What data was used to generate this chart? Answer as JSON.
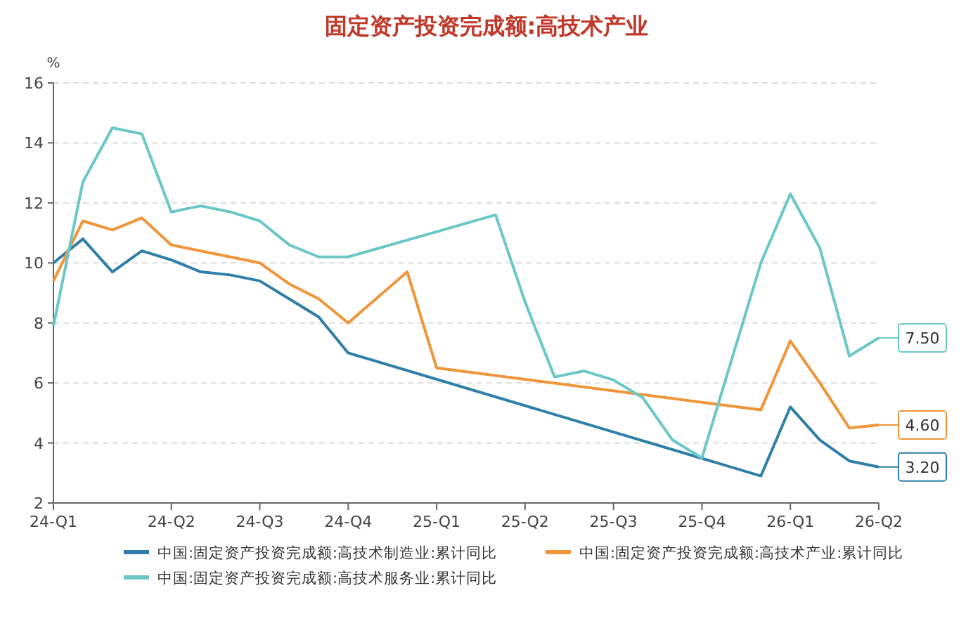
{
  "chart_data": {
    "type": "line",
    "title": "固定资产投资完成额:高技术产业",
    "ylabel": "%",
    "categories": [
      "24-Q1",
      null,
      null,
      null,
      "24-Q2",
      null,
      null,
      "24-Q3",
      null,
      null,
      "24-Q4",
      null,
      null,
      "25-Q1",
      null,
      null,
      "25-Q2",
      null,
      null,
      "25-Q3",
      null,
      null,
      "25-Q4",
      null,
      null,
      "26-Q1",
      null,
      null,
      "26-Q2"
    ],
    "series": [
      {
        "name": "中国:固定资产投资完成额:高技术制造业:累计同比",
        "color": "#2f7fa8",
        "values": [
          10.0,
          10.8,
          9.7,
          10.4,
          10.1,
          9.7,
          9.6,
          9.4,
          8.8,
          8.2,
          7.0,
          null,
          null,
          null,
          null,
          null,
          null,
          null,
          null,
          null,
          null,
          null,
          null,
          null,
          2.9,
          5.2,
          4.1,
          3.4,
          3.2
        ],
        "value_labels": [
          null,
          null,
          null,
          null,
          null,
          null,
          null,
          null,
          null,
          null,
          null,
          null,
          null,
          null,
          null,
          null,
          null,
          null,
          null,
          null,
          null,
          null,
          null,
          null,
          null,
          null,
          null,
          null,
          "3.20"
        ]
      },
      {
        "name": "中国:固定资产投资完成额:高技术产业:累计同比",
        "color": "#f0953a",
        "values": [
          9.4,
          11.4,
          11.1,
          11.5,
          10.6,
          10.4,
          10.2,
          10.0,
          9.3,
          8.8,
          8.0,
          null,
          9.7,
          6.5,
          null,
          null,
          null,
          null,
          null,
          null,
          null,
          null,
          null,
          null,
          5.1,
          7.4,
          6.0,
          4.5,
          4.6
        ],
        "value_labels": [
          null,
          null,
          null,
          null,
          null,
          null,
          null,
          null,
          null,
          null,
          null,
          null,
          null,
          null,
          null,
          null,
          null,
          null,
          null,
          null,
          null,
          null,
          null,
          null,
          null,
          null,
          null,
          null,
          "4.60"
        ]
      },
      {
        "name": "中国:固定资产投资完成额:高技术服务业:累计同比",
        "color": "#6cc7c7",
        "values": [
          7.9,
          12.7,
          14.5,
          14.3,
          11.7,
          11.9,
          11.7,
          11.4,
          10.6,
          10.2,
          10.2,
          null,
          null,
          null,
          null,
          11.6,
          8.7,
          6.2,
          6.4,
          6.1,
          5.5,
          4.1,
          3.5,
          null,
          10.0,
          12.3,
          10.5,
          6.9,
          7.5
        ],
        "value_labels": [
          null,
          null,
          null,
          null,
          null,
          null,
          null,
          null,
          null,
          null,
          null,
          null,
          null,
          null,
          null,
          null,
          null,
          null,
          null,
          null,
          null,
          null,
          null,
          null,
          null,
          null,
          null,
          null,
          "7.50"
        ]
      }
    ],
    "ylim": [
      2,
      16
    ],
    "yticks": [
      2,
      4,
      6,
      8,
      10,
      12,
      14,
      16
    ],
    "grid": "y",
    "legend": "bottom",
    "marker": "none",
    "line_style": "solid"
  }
}
